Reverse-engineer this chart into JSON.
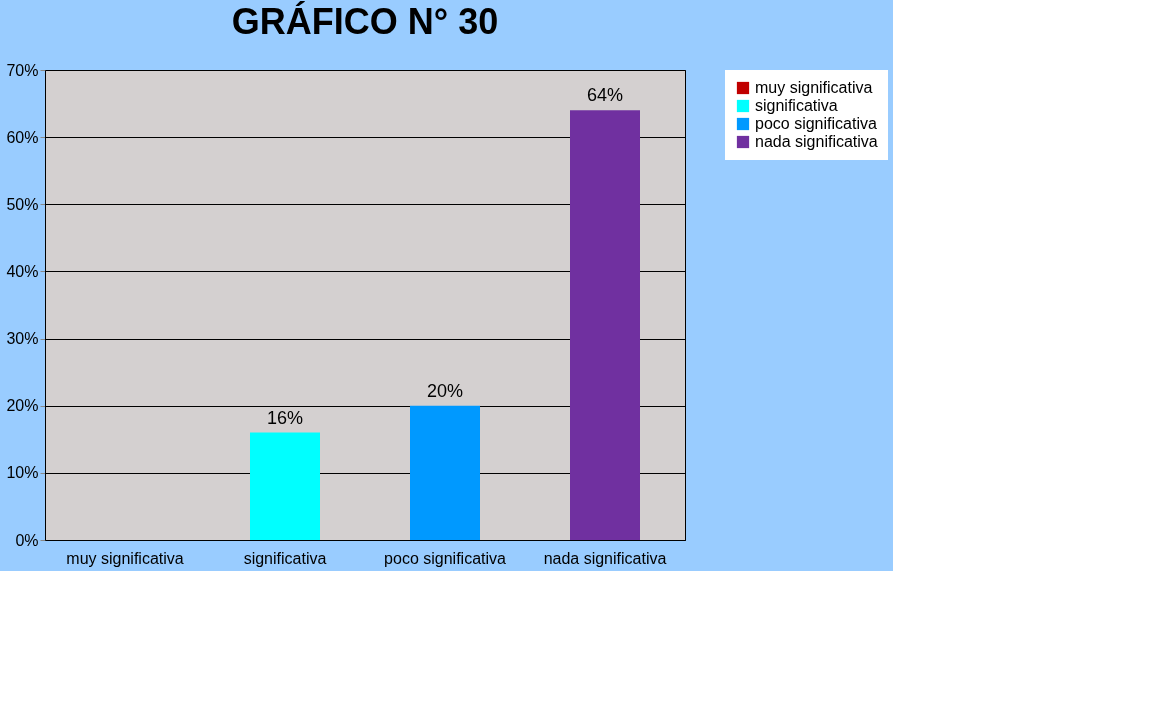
{
  "chart_data": {
    "type": "bar",
    "title": "GRÁFICO N° 30",
    "categories": [
      "muy significativa",
      "significativa",
      "poco significativa",
      "nada significativa"
    ],
    "series": [
      {
        "name": "muy significativa",
        "color": "#c00000",
        "values": [
          0,
          null,
          null,
          null
        ]
      },
      {
        "name": "significativa",
        "color": "#00ffff",
        "values": [
          null,
          16,
          null,
          null
        ],
        "value_labels": [
          null,
          "16%",
          null,
          null
        ]
      },
      {
        "name": "poco significativa",
        "color": "#0099ff",
        "values": [
          null,
          null,
          20,
          null
        ],
        "value_labels": [
          null,
          null,
          "20%",
          null
        ]
      },
      {
        "name": "nada significativa",
        "color": "#7030a0",
        "values": [
          null,
          null,
          null,
          64
        ],
        "value_labels": [
          null,
          null,
          null,
          "64%"
        ]
      }
    ],
    "ylim": [
      0,
      70
    ],
    "yticks": [
      {
        "value": 0,
        "label": "0%"
      },
      {
        "value": 10,
        "label": "10%"
      },
      {
        "value": 20,
        "label": "20%"
      },
      {
        "value": 30,
        "label": "30%"
      },
      {
        "value": 40,
        "label": "40%"
      },
      {
        "value": 50,
        "label": "50%"
      },
      {
        "value": 60,
        "label": "60%"
      },
      {
        "value": 70,
        "label": "70%"
      }
    ],
    "grid": "y",
    "legend": "right"
  }
}
